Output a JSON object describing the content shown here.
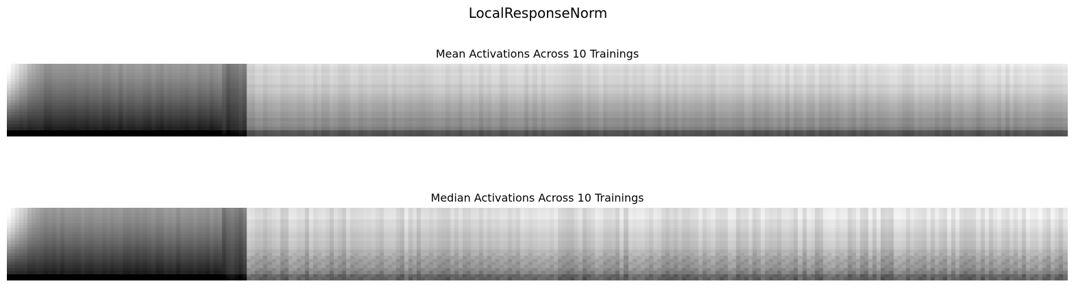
{
  "figure": {
    "title": "LocalResponseNorm"
  },
  "chart_data": [
    {
      "type": "heatmap",
      "title": "Mean Activations Across 10 Trainings",
      "colormap": "gray",
      "axes": "off",
      "columns": 256,
      "rows": 24,
      "seed": 7
    },
    {
      "type": "heatmap",
      "title": "Median Activations Across 10 Trainings",
      "colormap": "gray",
      "axes": "off",
      "columns": 256,
      "rows": 24,
      "seed": 19
    }
  ]
}
